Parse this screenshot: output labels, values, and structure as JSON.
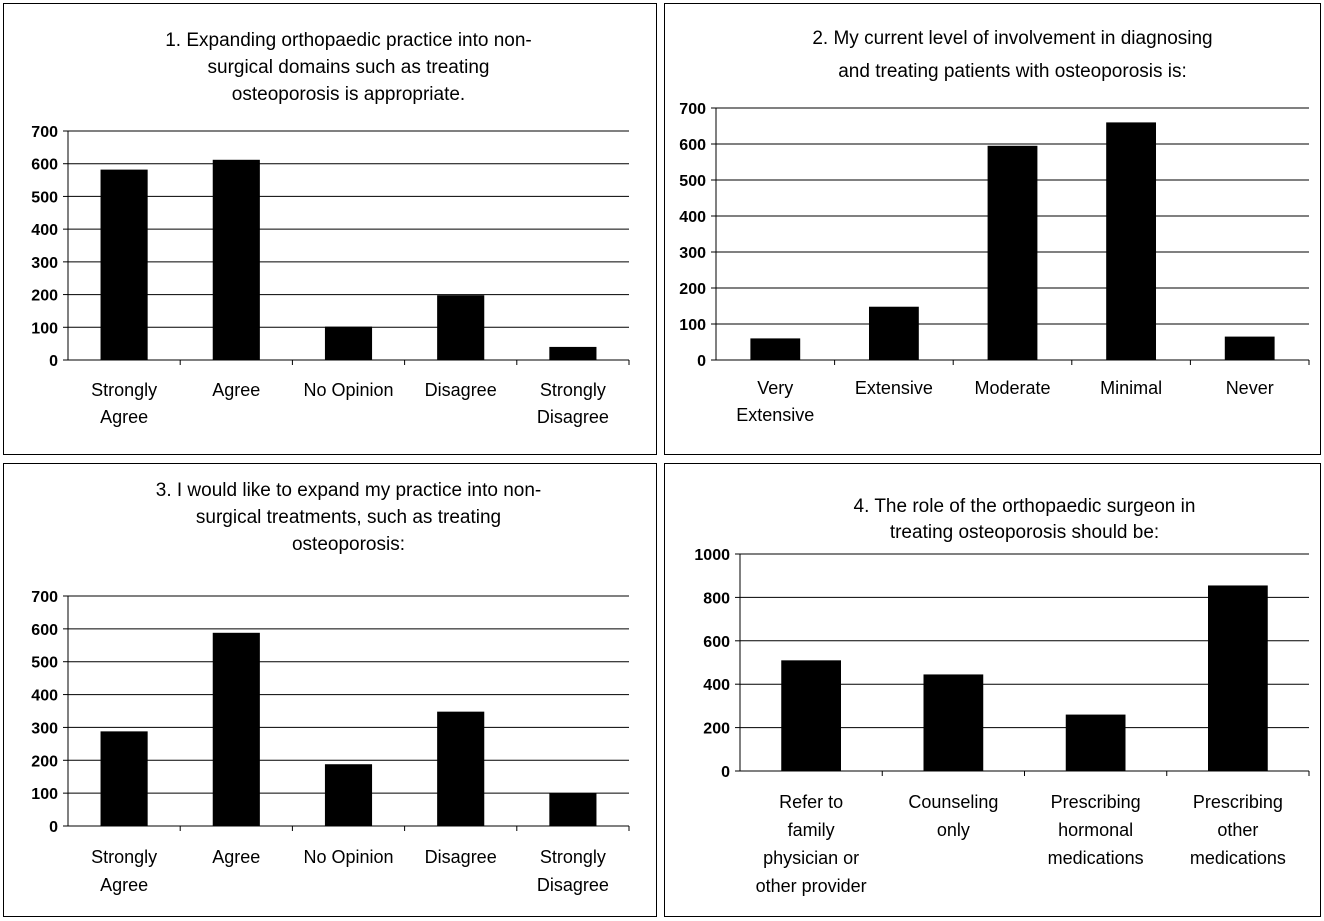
{
  "chart_data": [
    {
      "type": "bar",
      "title_lines": [
        "1. Expanding orthopaedic practice into non-",
        "surgical domains such as treating",
        "osteoporosis is appropriate."
      ],
      "categories": [
        [
          "Strongly",
          "Agree"
        ],
        [
          "Agree"
        ],
        [
          "No Opinion"
        ],
        [
          "Disagree"
        ],
        [
          "Strongly",
          "Disagree"
        ]
      ],
      "values": [
        582,
        612,
        102,
        198,
        40
      ],
      "yticks": [
        "0",
        "100",
        "200",
        "300",
        "400",
        "500",
        "600",
        "700"
      ],
      "ylim": [
        0,
        700
      ],
      "grid": true,
      "bar_color": "#000000"
    },
    {
      "type": "bar",
      "title_lines": [
        "2. My current level of involvement in diagnosing",
        "and treating patients with osteoporosis is:"
      ],
      "categories": [
        [
          "Very",
          "Extensive"
        ],
        [
          "Extensive"
        ],
        [
          "Moderate"
        ],
        [
          "Minimal"
        ],
        [
          "Never"
        ]
      ],
      "values": [
        60,
        148,
        595,
        660,
        65
      ],
      "yticks": [
        "0",
        "100",
        "200",
        "300",
        "400",
        "500",
        "600",
        "700"
      ],
      "ylim": [
        0,
        700
      ],
      "grid": true,
      "bar_color": "#000000"
    },
    {
      "type": "bar",
      "title_lines": [
        "3. I would like to expand my practice into non-",
        "surgical treatments, such as treating",
        "osteoporosis:"
      ],
      "categories": [
        [
          "Strongly",
          "Agree"
        ],
        [
          "Agree"
        ],
        [
          "No Opinion"
        ],
        [
          "Disagree"
        ],
        [
          "Strongly",
          "Disagree"
        ]
      ],
      "values": [
        288,
        588,
        188,
        348,
        100
      ],
      "yticks": [
        "0",
        "100",
        "200",
        "300",
        "400",
        "500",
        "600",
        "700"
      ],
      "ylim": [
        0,
        700
      ],
      "grid": true,
      "bar_color": "#000000"
    },
    {
      "type": "bar",
      "title_lines": [
        "4. The role of the orthopaedic surgeon in",
        "treating osteoporosis should be:"
      ],
      "categories": [
        [
          "Refer to",
          "family",
          "physician or",
          "other provider"
        ],
        [
          "Counseling",
          "only"
        ],
        [
          "Prescribing",
          "hormonal",
          "medications"
        ],
        [
          "Prescribing",
          "other",
          "medications"
        ]
      ],
      "values": [
        510,
        445,
        260,
        855
      ],
      "yticks": [
        "0",
        "200",
        "400",
        "600",
        "800",
        "1000"
      ],
      "ylim": [
        0,
        1000
      ],
      "grid": true,
      "bar_color": "#000000"
    }
  ]
}
